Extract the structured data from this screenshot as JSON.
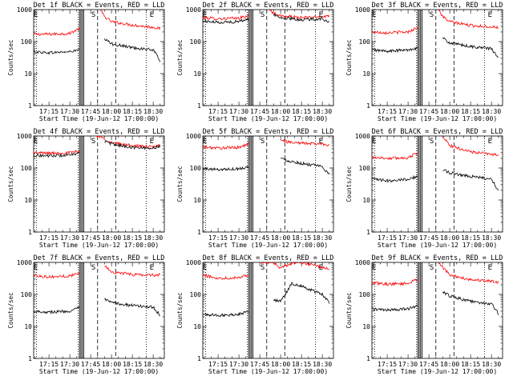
{
  "chart_data": [
    {
      "type": "line",
      "title": "Det 1f BLACK = Events, RED = LLD",
      "xlabel": "Start Time (19-Jun-12 17:00:00)",
      "ylabel": "Counts/sec",
      "yscale": "log",
      "ylim": [
        1,
        1000
      ],
      "xlim": [
        "17:04",
        "18:38"
      ],
      "xticks": [
        "17:15",
        "17:30",
        "17:45",
        "18:00",
        "18:15",
        "18:30"
      ],
      "yticks": [
        "1",
        "10",
        "100",
        "1000"
      ],
      "grid": false,
      "legend": "none",
      "series": [
        {
          "color": "#ff0000",
          "segments": [
            {
              "x": [
                "17:04",
                "17:15",
                "17:30",
                "17:37"
              ],
              "y": [
                170,
                170,
                180,
                260
              ]
            },
            {
              "x": [
                "17:52",
                "17:55",
                "18:00",
                "18:15",
                "18:30",
                "18:35"
              ],
              "y": [
                1000,
                600,
                420,
                330,
                280,
                260
              ]
            }
          ]
        },
        {
          "color": "#000000",
          "segments": [
            {
              "x": [
                "17:04",
                "17:15",
                "17:30",
                "17:37"
              ],
              "y": [
                48,
                45,
                48,
                55
              ]
            },
            {
              "x": [
                "17:55",
                "18:00",
                "18:15",
                "18:30",
                "18:35"
              ],
              "y": [
                120,
                85,
                65,
                55,
                25
              ]
            }
          ]
        }
      ]
    },
    {
      "type": "line",
      "title": "Det 2f BLACK = Events, RED = LLD",
      "xlabel": "Start Time (19-Jun-12 17:00:00)",
      "ylabel": "Counts/sec",
      "yscale": "log",
      "ylim": [
        1,
        1000
      ],
      "xlim": [
        "17:04",
        "18:38"
      ],
      "xticks": [
        "17:15",
        "17:30",
        "17:45",
        "18:00",
        "18:15",
        "18:30"
      ],
      "yticks": [
        "1",
        "10",
        "100",
        "1000"
      ],
      "grid": false,
      "legend": "none",
      "series": [
        {
          "color": "#ff0000",
          "segments": [
            {
              "x": [
                "17:04",
                "17:15",
                "17:30",
                "17:37"
              ],
              "y": [
                560,
                520,
                540,
                640
              ]
            },
            {
              "x": [
                "17:52",
                "17:55",
                "18:00",
                "18:15",
                "18:30",
                "18:35"
              ],
              "y": [
                1000,
                780,
                640,
                560,
                600,
                640
              ]
            }
          ]
        },
        {
          "color": "#000000",
          "segments": [
            {
              "x": [
                "17:04",
                "17:15",
                "17:30",
                "17:37"
              ],
              "y": [
                440,
                400,
                420,
                520
              ]
            },
            {
              "x": [
                "17:55",
                "18:00",
                "18:15",
                "18:30",
                "18:35"
              ],
              "y": [
                700,
                560,
                480,
                520,
                380
              ]
            }
          ]
        }
      ]
    },
    {
      "type": "line",
      "title": "Det 3f BLACK = Events, RED = LLD",
      "xlabel": "Start Time (19-Jun-12 17:00:00)",
      "ylabel": "Counts/sec",
      "yscale": "log",
      "ylim": [
        1,
        1000
      ],
      "xlim": [
        "17:04",
        "18:38"
      ],
      "xticks": [
        "17:15",
        "17:30",
        "17:45",
        "18:00",
        "18:15",
        "18:30"
      ],
      "yticks": [
        "1",
        "10",
        "100",
        "1000"
      ],
      "grid": false,
      "legend": "none",
      "series": [
        {
          "color": "#ff0000",
          "segments": [
            {
              "x": [
                "17:04",
                "17:15",
                "17:30",
                "17:37"
              ],
              "y": [
                200,
                190,
                200,
                280
              ]
            },
            {
              "x": [
                "17:52",
                "17:55",
                "18:00",
                "18:15",
                "18:30",
                "18:35"
              ],
              "y": [
                1000,
                600,
                420,
                320,
                290,
                280
              ]
            }
          ]
        },
        {
          "color": "#000000",
          "segments": [
            {
              "x": [
                "17:04",
                "17:15",
                "17:30",
                "17:37"
              ],
              "y": [
                55,
                50,
                55,
                65
              ]
            },
            {
              "x": [
                "17:55",
                "18:00",
                "18:15",
                "18:30",
                "18:35"
              ],
              "y": [
                130,
                90,
                70,
                60,
                30
              ]
            }
          ]
        }
      ]
    },
    {
      "type": "line",
      "title": "Det 4f BLACK = Events, RED = LLD",
      "xlabel": "Start Time (19-Jun-12 17:00:00)",
      "ylabel": "Counts/sec",
      "yscale": "log",
      "ylim": [
        1,
        1000
      ],
      "xlim": [
        "17:04",
        "18:38"
      ],
      "xticks": [
        "17:15",
        "17:30",
        "17:45",
        "18:00",
        "18:15",
        "18:30"
      ],
      "yticks": [
        "1",
        "10",
        "100",
        "1000"
      ],
      "grid": false,
      "legend": "none",
      "series": [
        {
          "color": "#ff0000",
          "segments": [
            {
              "x": [
                "17:04",
                "17:15",
                "17:30",
                "17:37"
              ],
              "y": [
                300,
                290,
                300,
                340
              ]
            },
            {
              "x": [
                "17:48",
                "17:51",
                "17:55",
                "18:00",
                "18:15",
                "18:30",
                "18:35"
              ],
              "y": [
                1000,
                1000,
                800,
                620,
                500,
                450,
                520
              ]
            }
          ]
        },
        {
          "color": "#000000",
          "segments": [
            {
              "x": [
                "17:04",
                "17:15",
                "17:30",
                "17:37"
              ],
              "y": [
                250,
                240,
                250,
                290
              ]
            },
            {
              "x": [
                "17:55",
                "18:00",
                "18:15",
                "18:30",
                "18:35"
              ],
              "y": [
                700,
                560,
                440,
                420,
                480
              ]
            }
          ]
        }
      ]
    },
    {
      "type": "line",
      "title": "Det 5f BLACK = Events, RED = LLD",
      "xlabel": "Start Time (19-Jun-12 17:00:00)",
      "ylabel": "Counts/sec",
      "yscale": "log",
      "ylim": [
        1,
        1000
      ],
      "xlim": [
        "17:04",
        "18:38"
      ],
      "xticks": [
        "17:15",
        "17:30",
        "17:45",
        "18:00",
        "18:15",
        "18:30"
      ],
      "yticks": [
        "1",
        "10",
        "100",
        "1000"
      ],
      "grid": false,
      "legend": "none",
      "series": [
        {
          "color": "#ff0000",
          "segments": [
            {
              "x": [
                "17:04",
                "17:15",
                "17:30",
                "17:37"
              ],
              "y": [
                450,
                420,
                440,
                560
              ]
            },
            {
              "x": [
                "18:00",
                "18:05",
                "18:15",
                "18:30",
                "18:35"
              ],
              "y": [
                800,
                650,
                600,
                560,
                520
              ]
            }
          ]
        },
        {
          "color": "#000000",
          "segments": [
            {
              "x": [
                "17:04",
                "17:15",
                "17:30",
                "17:37"
              ],
              "y": [
                95,
                90,
                95,
                110
              ]
            },
            {
              "x": [
                "18:00",
                "18:05",
                "18:15",
                "18:30",
                "18:35"
              ],
              "y": [
                200,
                170,
                140,
                110,
                60
              ]
            }
          ]
        }
      ]
    },
    {
      "type": "line",
      "title": "Det 6f BLACK = Events, RED = LLD",
      "xlabel": "Start Time (19-Jun-12 17:00:00)",
      "ylabel": "Counts/sec",
      "yscale": "log",
      "ylim": [
        1,
        1000
      ],
      "xlim": [
        "17:04",
        "18:38"
      ],
      "xticks": [
        "17:15",
        "17:30",
        "17:45",
        "18:00",
        "18:15",
        "18:30"
      ],
      "yticks": [
        "1",
        "10",
        "100",
        "1000"
      ],
      "grid": false,
      "legend": "none",
      "series": [
        {
          "color": "#ff0000",
          "segments": [
            {
              "x": [
                "17:04",
                "17:15",
                "17:30",
                "17:37"
              ],
              "y": [
                220,
                200,
                210,
                300
              ]
            },
            {
              "x": [
                "17:55",
                "18:00",
                "18:15",
                "18:30",
                "18:35"
              ],
              "y": [
                1000,
                500,
                320,
                270,
                260
              ]
            }
          ]
        },
        {
          "color": "#000000",
          "segments": [
            {
              "x": [
                "17:04",
                "17:15",
                "17:30",
                "17:37"
              ],
              "y": [
                45,
                40,
                45,
                55
              ]
            },
            {
              "x": [
                "17:55",
                "18:00",
                "18:15",
                "18:30",
                "18:35"
              ],
              "y": [
                90,
                70,
                55,
                45,
                20
              ]
            }
          ]
        }
      ]
    },
    {
      "type": "line",
      "title": "Det 7f BLACK = Events, RED = LLD",
      "xlabel": "Start Time (19-Jun-12 17:00:00)",
      "ylabel": "Counts/sec",
      "yscale": "log",
      "ylim": [
        1,
        1000
      ],
      "xlim": [
        "17:04",
        "18:38"
      ],
      "xticks": [
        "17:15",
        "17:30",
        "17:45",
        "18:00",
        "18:15",
        "18:30"
      ],
      "yticks": [
        "1",
        "10",
        "100",
        "1000"
      ],
      "grid": false,
      "legend": "none",
      "series": [
        {
          "color": "#ff0000",
          "segments": [
            {
              "x": [
                "17:04",
                "17:15",
                "17:30",
                "17:37"
              ],
              "y": [
                400,
                350,
                380,
                460
              ]
            },
            {
              "x": [
                "17:55",
                "18:00",
                "18:15",
                "18:30",
                "18:35"
              ],
              "y": [
                800,
                500,
                420,
                400,
                420
              ]
            }
          ]
        },
        {
          "color": "#000000",
          "segments": [
            {
              "x": [
                "17:04",
                "17:15",
                "17:30",
                "17:37"
              ],
              "y": [
                30,
                28,
                30,
                38
              ]
            },
            {
              "x": [
                "17:55",
                "18:00",
                "18:15",
                "18:30",
                "18:35"
              ],
              "y": [
                70,
                55,
                45,
                40,
                22
              ]
            }
          ]
        }
      ]
    },
    {
      "type": "line",
      "title": "Det 8f BLACK = Events, RED = LLD",
      "xlabel": "Start Time (19-Jun-12 17:00:00)",
      "ylabel": "Counts/sec",
      "yscale": "log",
      "ylim": [
        1,
        1000
      ],
      "xlim": [
        "17:04",
        "18:38"
      ],
      "xticks": [
        "17:15",
        "17:30",
        "17:45",
        "18:00",
        "18:15",
        "18:30"
      ],
      "yticks": [
        "1",
        "10",
        "100",
        "1000"
      ],
      "grid": false,
      "legend": "none",
      "series": [
        {
          "color": "#ff0000",
          "segments": [
            {
              "x": [
                "17:04",
                "17:15",
                "17:30",
                "17:37"
              ],
              "y": [
                400,
                320,
                340,
                420
              ]
            },
            {
              "x": [
                "17:46",
                "17:50",
                "17:55",
                "18:00",
                "18:04",
                "18:10",
                "18:20",
                "18:30",
                "18:35"
              ],
              "y": [
                1000,
                1000,
                1000,
                650,
                800,
                1000,
                900,
                700,
                600
              ]
            }
          ]
        },
        {
          "color": "#000000",
          "segments": [
            {
              "x": [
                "17:04",
                "17:15",
                "17:30",
                "17:37"
              ],
              "y": [
                24,
                22,
                24,
                30
              ]
            },
            {
              "x": [
                "17:55",
                "18:00",
                "18:08",
                "18:15",
                "18:30",
                "18:35"
              ],
              "y": [
                70,
                60,
                220,
                180,
                100,
                55
              ]
            }
          ]
        }
      ]
    },
    {
      "type": "line",
      "title": "Det 9f BLACK = Events, RED = LLD",
      "xlabel": "Start Time (19-Jun-12 17:00:00)",
      "ylabel": "Counts/sec",
      "yscale": "log",
      "ylim": [
        1,
        1000
      ],
      "xlim": [
        "17:04",
        "18:38"
      ],
      "xticks": [
        "17:15",
        "17:30",
        "17:45",
        "18:00",
        "18:15",
        "18:30"
      ],
      "yticks": [
        "1",
        "10",
        "100",
        "1000"
      ],
      "grid": false,
      "legend": "none",
      "series": [
        {
          "color": "#ff0000",
          "segments": [
            {
              "x": [
                "17:04",
                "17:15",
                "17:30",
                "17:37"
              ],
              "y": [
                230,
                210,
                220,
                300
              ]
            },
            {
              "x": [
                "17:52",
                "17:55",
                "18:00",
                "18:15",
                "18:30",
                "18:35"
              ],
              "y": [
                1000,
                700,
                400,
                290,
                260,
                240
              ]
            }
          ]
        },
        {
          "color": "#000000",
          "segments": [
            {
              "x": [
                "17:04",
                "17:15",
                "17:30",
                "17:37"
              ],
              "y": [
                35,
                32,
                35,
                45
              ]
            },
            {
              "x": [
                "17:55",
                "18:00",
                "18:15",
                "18:30",
                "18:35"
              ],
              "y": [
                120,
                90,
                60,
                50,
                25
              ]
            }
          ]
        }
      ]
    }
  ],
  "markers": {
    "solid_lines": [
      "17:37",
      "17:38",
      "17:39",
      "17:40"
    ],
    "dashed_lines": [
      "17:50",
      "18:03"
    ],
    "dotted_lines": [
      "17:06",
      "17:36",
      "18:25"
    ],
    "marker_labels": [
      {
        "x": "17:47",
        "text": "S"
      },
      {
        "x": "18:29",
        "text": "E"
      }
    ],
    "left_label": "E",
    "left_label_x": "17:04"
  }
}
